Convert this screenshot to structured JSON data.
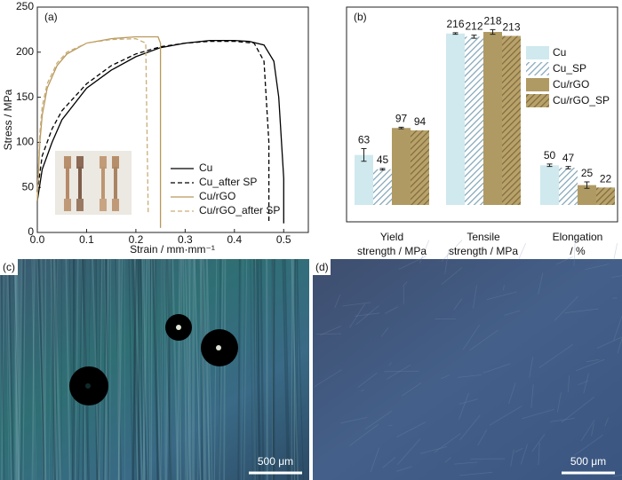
{
  "chart_data": [
    {
      "type": "line",
      "panel_label": "(a)",
      "x_label": "Strain / mm·mm⁻¹",
      "y_label": "Stress / MPa",
      "xlim": [
        0,
        0.55
      ],
      "ylim": [
        0,
        250
      ],
      "xticks": [
        {
          "value": 0,
          "label": "0.0"
        },
        0.1,
        0.2,
        0.3,
        0.4,
        0.5
      ],
      "yticks": [
        0,
        50,
        100,
        150,
        200,
        250
      ],
      "series": [
        {
          "name": "Cu",
          "color": "#000000",
          "dash": false,
          "x": [
            0,
            0.01,
            0.03,
            0.05,
            0.1,
            0.15,
            0.2,
            0.25,
            0.3,
            0.35,
            0.4,
            0.43,
            0.46,
            0.48,
            0.49,
            0.5,
            0.5
          ],
          "values": [
            35,
            70,
            100,
            125,
            160,
            180,
            195,
            205,
            210,
            213,
            213,
            212,
            208,
            190,
            150,
            60,
            10
          ]
        },
        {
          "name": "Cu_after SP",
          "color": "#000000",
          "dash": true,
          "x": [
            0,
            0.01,
            0.03,
            0.05,
            0.1,
            0.15,
            0.2,
            0.25,
            0.3,
            0.35,
            0.4,
            0.44,
            0.46,
            0.47,
            0.47
          ],
          "values": [
            45,
            85,
            115,
            135,
            165,
            185,
            198,
            206,
            210,
            212,
            212,
            210,
            190,
            100,
            10
          ]
        },
        {
          "name": "Cu/rGO",
          "color": "#b8985a",
          "dash": false,
          "x": [
            0,
            0.005,
            0.01,
            0.02,
            0.04,
            0.06,
            0.1,
            0.15,
            0.2,
            0.245,
            0.25,
            0.25
          ],
          "values": [
            35,
            100,
            130,
            160,
            185,
            198,
            210,
            215,
            217,
            217,
            210,
            5
          ]
        },
        {
          "name": "Cu/rGO_after SP",
          "color": "#c9ad78",
          "dash": true,
          "x": [
            0,
            0.005,
            0.01,
            0.02,
            0.04,
            0.06,
            0.1,
            0.15,
            0.2,
            0.22,
            0.225
          ],
          "values": [
            40,
            110,
            140,
            165,
            188,
            200,
            210,
            214,
            215,
            210,
            20
          ]
        }
      ]
    },
    {
      "type": "bar",
      "panel_label": "(b)",
      "categories": [
        [
          "Yield",
          "strength / MPa"
        ],
        [
          "Tensile",
          "strength / MPa"
        ],
        [
          "Elongation",
          "/ %"
        ]
      ],
      "series": [
        {
          "name": "Cu",
          "color": "#cfe9ee",
          "hatch": false,
          "values": [
            63,
            216,
            50
          ],
          "errors": [
            8,
            1,
            1.5
          ]
        },
        {
          "name": "Cu_SP",
          "color": "#7fa3b5",
          "hatch": true,
          "values": [
            45,
            212,
            47
          ],
          "errors": [
            1,
            2,
            1.5
          ]
        },
        {
          "name": "Cu/rGO",
          "color": "#b09a63",
          "hatch": false,
          "values": [
            97,
            218,
            25
          ],
          "errors": [
            1,
            3,
            4
          ]
        },
        {
          "name": "Cu/rGO_SP",
          "color": "#7d6a3c",
          "hatch": true,
          "values": [
            94,
            213,
            22
          ],
          "errors": [
            null,
            null,
            null
          ]
        }
      ]
    }
  ],
  "images": [
    {
      "panel_label": "(c)",
      "scale_bar": "500 μm"
    },
    {
      "panel_label": "(d)",
      "scale_bar": "500 μm"
    }
  ]
}
